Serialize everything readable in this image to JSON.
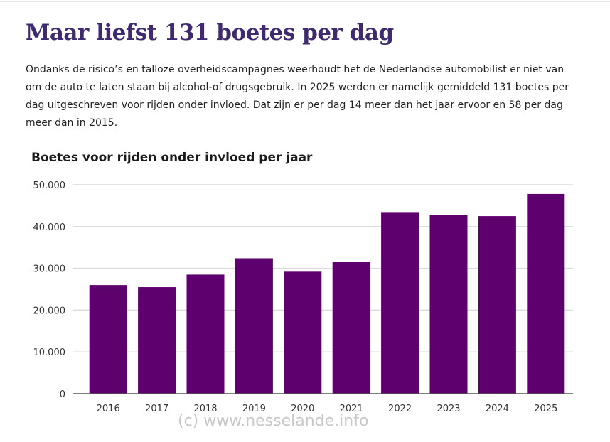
{
  "heading": "Maar liefst 131 boetes per dag",
  "intro": "Ondanks de risico’s en talloze overheidscampagnes weerhoudt het de Nederlandse automobilist er niet van om de auto te laten staan bij alcohol-of drugsgebruik. In 2025 werden er namelijk gemiddeld 131 boetes per dag uitgeschreven voor rijden onder invloed. Dat zijn er per dag 14 meer dan het jaar ervoor en 58 per dag meer dan in 2015.",
  "watermark": "(c)  www.nesselande.info",
  "chart_data": {
    "type": "bar",
    "title": "Boetes voor rijden onder invloed per jaar",
    "categories": [
      "2016",
      "2017",
      "2018",
      "2019",
      "2020",
      "2021",
      "2022",
      "2023",
      "2024",
      "2025"
    ],
    "values": [
      26000,
      25500,
      28500,
      32400,
      29200,
      31600,
      43300,
      42700,
      42500,
      47800
    ],
    "ylim": [
      0,
      50000
    ],
    "yticks": [
      "0",
      "10.000",
      "20.000",
      "30.000",
      "40.000",
      "50.000"
    ],
    "grid": true,
    "bar_color": "#5f006f"
  }
}
